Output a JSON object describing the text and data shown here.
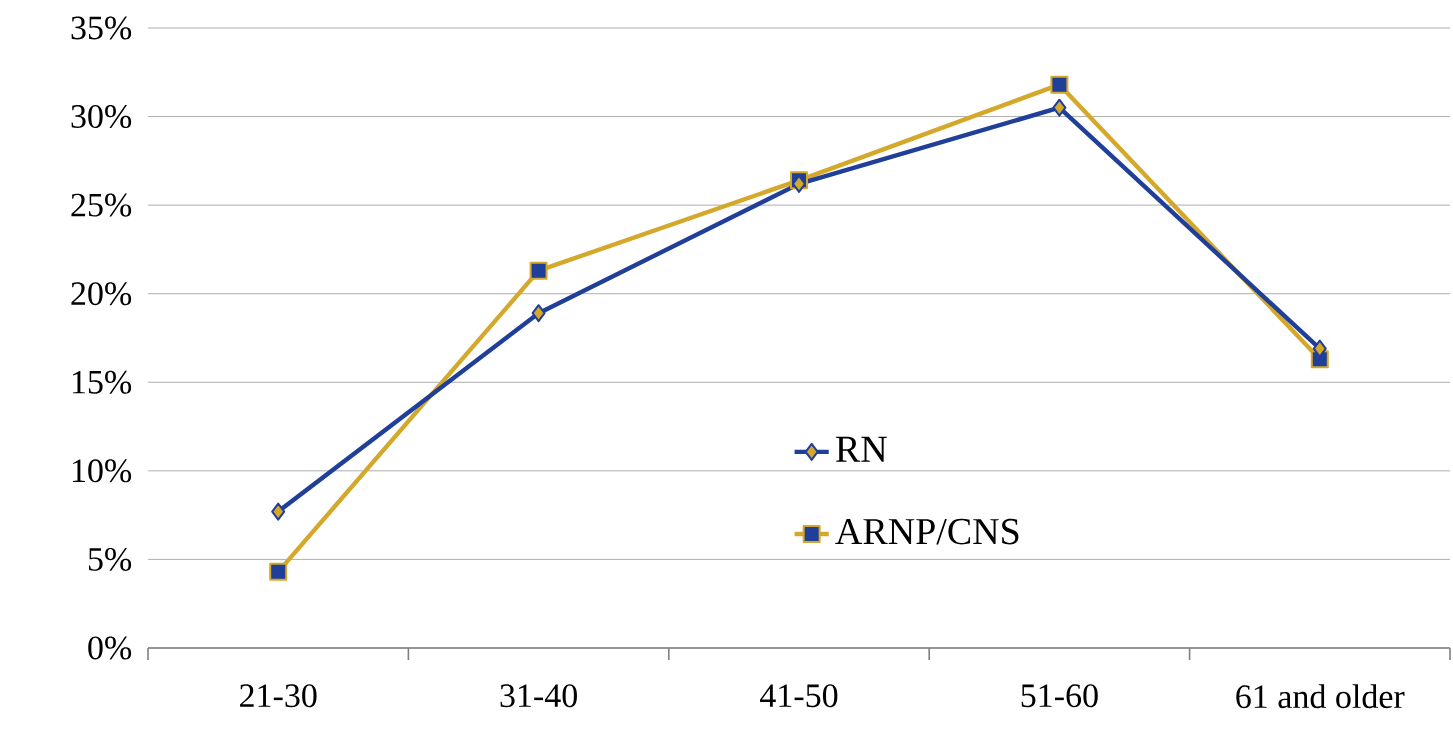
{
  "chart_data": {
    "type": "line",
    "categories": [
      "21-30",
      "31-40",
      "41-50",
      "51-60",
      "61 and older"
    ],
    "series": [
      {
        "name": "RN",
        "color": "#1f3f99",
        "marker": "diamond",
        "values": [
          7.7,
          18.9,
          26.2,
          30.5,
          16.9
        ]
      },
      {
        "name": "ARNP/CNS",
        "color": "#d4a82a",
        "marker": "square",
        "values": [
          4.3,
          21.3,
          26.4,
          31.8,
          16.3
        ]
      }
    ],
    "ylim": [
      0,
      35
    ],
    "yticks": [
      {
        "value": 0,
        "label": "0%"
      },
      {
        "value": 5,
        "label": "5%"
      },
      {
        "value": 10,
        "label": "10%"
      },
      {
        "value": 15,
        "label": "15%"
      },
      {
        "value": 20,
        "label": "20%"
      },
      {
        "value": 25,
        "label": "25%"
      },
      {
        "value": 30,
        "label": "30%"
      },
      {
        "value": 35,
        "label": "35%"
      }
    ],
    "grid": "y",
    "legend": "center",
    "line_style": "solid"
  }
}
